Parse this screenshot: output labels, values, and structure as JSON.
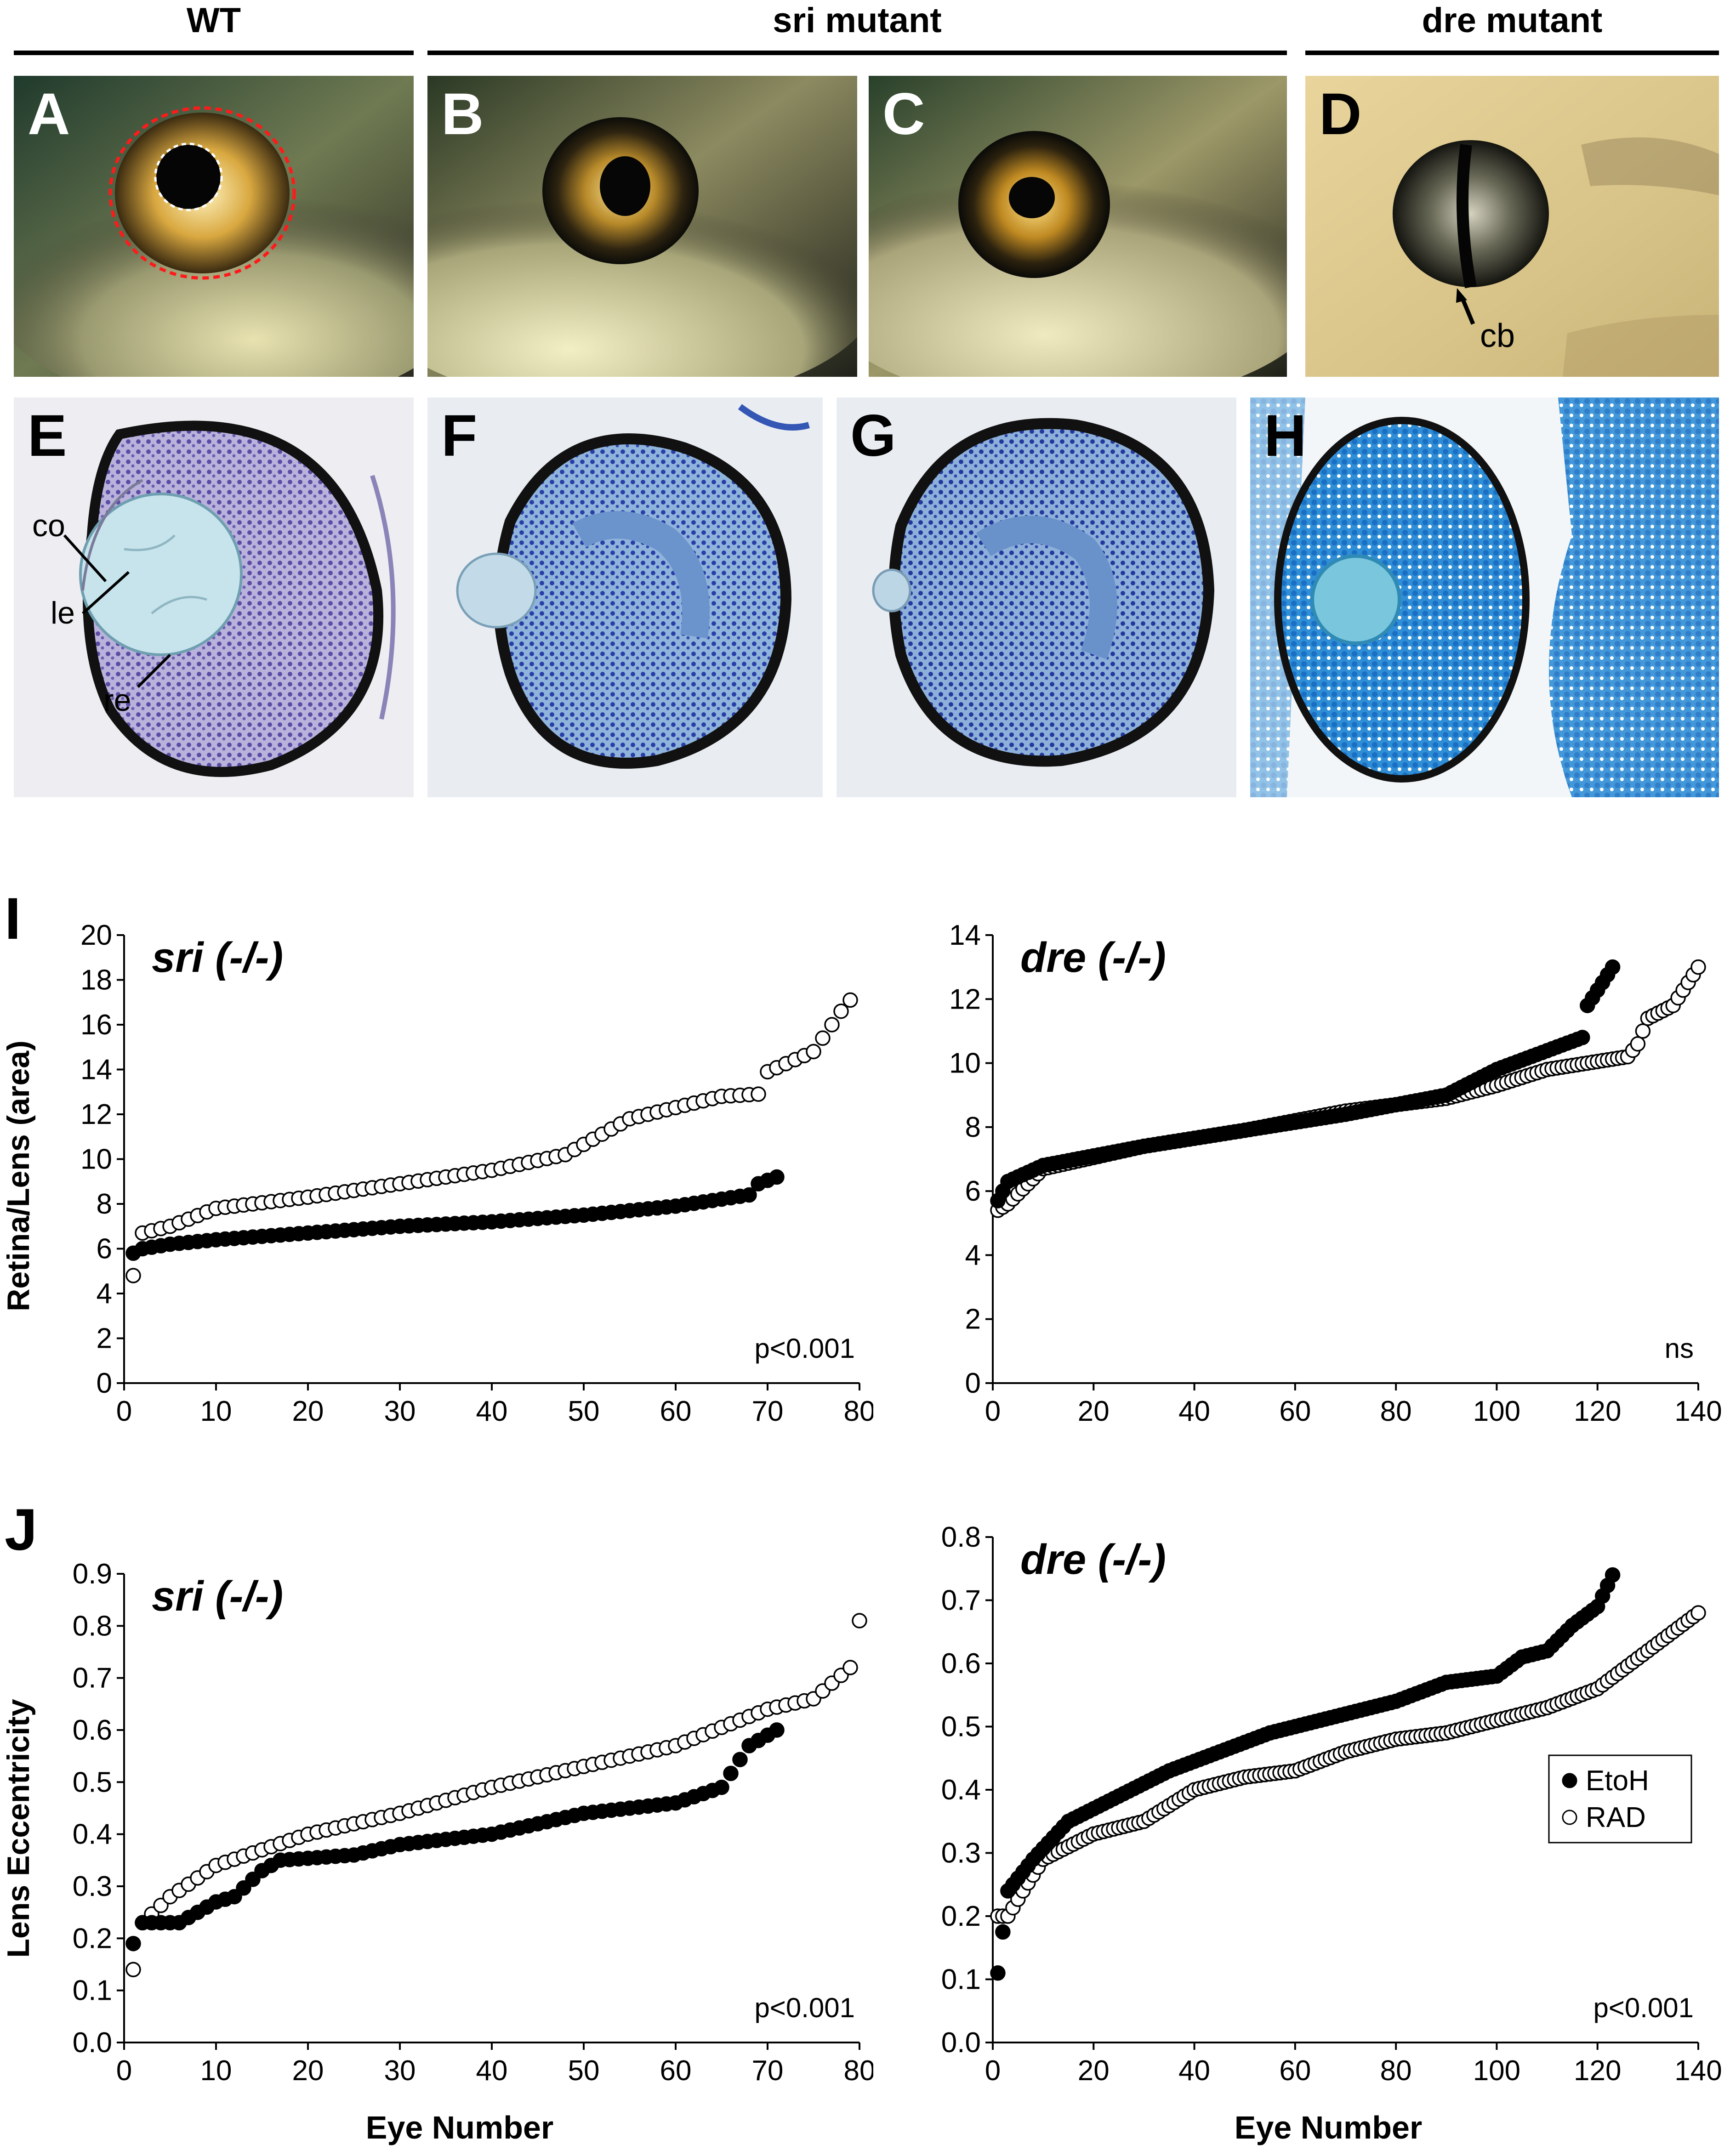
{
  "headers": [
    {
      "id": "wt",
      "label": "WT"
    },
    {
      "id": "sri",
      "label": "sri mutant"
    },
    {
      "id": "dre",
      "label": "dre mutant"
    }
  ],
  "photo_panels": [
    {
      "letter": "A",
      "style": "wt"
    },
    {
      "letter": "B",
      "style": "sri"
    },
    {
      "letter": "C",
      "style": "sri"
    },
    {
      "letter": "D",
      "style": "dre",
      "annotation": "cb"
    }
  ],
  "section_panels": [
    {
      "letter": "E",
      "style": "purple",
      "labels": [
        "co",
        "le",
        "re"
      ]
    },
    {
      "letter": "F",
      "style": "blue"
    },
    {
      "letter": "G",
      "style": "blue"
    },
    {
      "letter": "H",
      "style": "bright"
    }
  ],
  "figure_labels": {
    "I": "I",
    "J": "J"
  },
  "shared_ylabel_I": "Retina/Lens (area)",
  "shared_ylabel_J": "Lens Eccentricity",
  "shared_xlabel": "Eye Number",
  "legend": {
    "etoh": "EtoH",
    "rad": "RAD"
  },
  "colors": {
    "etoh": "#000000",
    "rad": "#ffffff",
    "header_rule": "#000000"
  },
  "chart_data": [
    {
      "id": "I-sri",
      "type": "scatter",
      "title": "sri  (-/-)",
      "stat": "p<0.001",
      "xlim": [
        0,
        80
      ],
      "ylim": [
        0,
        20
      ],
      "xticks": [
        0,
        10,
        20,
        30,
        40,
        50,
        60,
        70,
        80
      ],
      "yticks": [
        0,
        2,
        4,
        6,
        8,
        10,
        12,
        14,
        16,
        18,
        20
      ],
      "series": [
        {
          "key": "etoh",
          "n": 71,
          "anchors": [
            [
              1,
              5.8
            ],
            [
              2,
              6.0
            ],
            [
              5,
              6.2
            ],
            [
              10,
              6.4
            ],
            [
              20,
              6.7
            ],
            [
              30,
              7.0
            ],
            [
              40,
              7.2
            ],
            [
              50,
              7.5
            ],
            [
              60,
              7.9
            ],
            [
              68,
              8.4
            ],
            [
              69,
              8.9
            ],
            [
              71,
              9.2
            ]
          ]
        },
        {
          "key": "rad",
          "n": 79,
          "anchors": [
            [
              1,
              4.8
            ],
            [
              2,
              6.7
            ],
            [
              5,
              7.0
            ],
            [
              10,
              7.8
            ],
            [
              20,
              8.3
            ],
            [
              30,
              8.9
            ],
            [
              40,
              9.5
            ],
            [
              48,
              10.2
            ],
            [
              55,
              11.8
            ],
            [
              65,
              12.8
            ],
            [
              69,
              12.9
            ],
            [
              70,
              13.9
            ],
            [
              75,
              14.8
            ],
            [
              78,
              16.6
            ],
            [
              79,
              17.1
            ]
          ]
        }
      ]
    },
    {
      "id": "I-dre",
      "type": "scatter",
      "title": "dre (-/-)",
      "stat": "ns",
      "xlim": [
        0,
        140
      ],
      "ylim": [
        0,
        14
      ],
      "xticks": [
        0,
        20,
        40,
        60,
        80,
        100,
        120,
        140
      ],
      "yticks": [
        0,
        2,
        4,
        6,
        8,
        10,
        12,
        14
      ],
      "series": [
        {
          "key": "etoh",
          "n": 123,
          "anchors": [
            [
              1,
              5.7
            ],
            [
              3,
              6.3
            ],
            [
              10,
              6.8
            ],
            [
              30,
              7.4
            ],
            [
              50,
              7.9
            ],
            [
              70,
              8.4
            ],
            [
              90,
              9.0
            ],
            [
              100,
              9.8
            ],
            [
              117,
              10.8
            ],
            [
              118,
              11.8
            ],
            [
              123,
              13.0
            ]
          ]
        },
        {
          "key": "rad",
          "n": 140,
          "anchors": [
            [
              1,
              5.4
            ],
            [
              3,
              5.6
            ],
            [
              10,
              6.7
            ],
            [
              30,
              7.4
            ],
            [
              50,
              7.9
            ],
            [
              70,
              8.5
            ],
            [
              90,
              8.9
            ],
            [
              100,
              9.3
            ],
            [
              110,
              9.8
            ],
            [
              126,
              10.2
            ],
            [
              128,
              10.6
            ],
            [
              130,
              11.4
            ],
            [
              135,
              11.8
            ],
            [
              140,
              13.0
            ]
          ]
        }
      ]
    },
    {
      "id": "J-sri",
      "type": "scatter",
      "title": "sri (-/-)",
      "stat": "p<0.001",
      "xlim": [
        0,
        80
      ],
      "ylim": [
        0,
        0.9
      ],
      "xticks": [
        0,
        10,
        20,
        30,
        40,
        50,
        60,
        70,
        80
      ],
      "yticks": [
        0,
        0.1,
        0.2,
        0.3,
        0.4,
        0.5,
        0.6,
        0.7,
        0.8,
        0.9
      ],
      "series": [
        {
          "key": "etoh",
          "n": 71,
          "anchors": [
            [
              1,
              0.19
            ],
            [
              2,
              0.23
            ],
            [
              6,
              0.23
            ],
            [
              8,
              0.25
            ],
            [
              10,
              0.27
            ],
            [
              12,
              0.28
            ],
            [
              15,
              0.33
            ],
            [
              17,
              0.35
            ],
            [
              25,
              0.36
            ],
            [
              30,
              0.38
            ],
            [
              40,
              0.4
            ],
            [
              50,
              0.44
            ],
            [
              60,
              0.46
            ],
            [
              65,
              0.49
            ],
            [
              68,
              0.57
            ],
            [
              71,
              0.6
            ]
          ]
        },
        {
          "key": "rad",
          "n": 80,
          "anchors": [
            [
              1,
              0.14
            ],
            [
              2,
              0.23
            ],
            [
              5,
              0.28
            ],
            [
              10,
              0.34
            ],
            [
              20,
              0.4
            ],
            [
              30,
              0.44
            ],
            [
              40,
              0.49
            ],
            [
              50,
              0.53
            ],
            [
              60,
              0.57
            ],
            [
              70,
              0.64
            ],
            [
              75,
              0.66
            ],
            [
              79,
              0.72
            ],
            [
              80,
              0.81
            ]
          ]
        }
      ]
    },
    {
      "id": "J-dre",
      "type": "scatter",
      "title": "dre (-/-)",
      "stat": "p<0.001",
      "xlim": [
        0,
        140
      ],
      "ylim": [
        0,
        0.8
      ],
      "xticks": [
        0,
        20,
        40,
        60,
        80,
        100,
        120,
        140
      ],
      "yticks": [
        0,
        0.1,
        0.2,
        0.3,
        0.4,
        0.5,
        0.6,
        0.7,
        0.8
      ],
      "series": [
        {
          "key": "etoh",
          "n": 123,
          "anchors": [
            [
              1,
              0.11
            ],
            [
              3,
              0.24
            ],
            [
              8,
              0.29
            ],
            [
              15,
              0.35
            ],
            [
              25,
              0.39
            ],
            [
              35,
              0.43
            ],
            [
              45,
              0.46
            ],
            [
              55,
              0.49
            ],
            [
              65,
              0.51
            ],
            [
              80,
              0.54
            ],
            [
              90,
              0.57
            ],
            [
              100,
              0.58
            ],
            [
              105,
              0.61
            ],
            [
              110,
              0.62
            ],
            [
              115,
              0.66
            ],
            [
              120,
              0.69
            ],
            [
              123,
              0.74
            ]
          ]
        },
        {
          "key": "rad",
          "n": 140,
          "anchors": [
            [
              1,
              0.2
            ],
            [
              3,
              0.2
            ],
            [
              6,
              0.24
            ],
            [
              10,
              0.29
            ],
            [
              20,
              0.33
            ],
            [
              30,
              0.35
            ],
            [
              40,
              0.4
            ],
            [
              50,
              0.42
            ],
            [
              60,
              0.43
            ],
            [
              70,
              0.46
            ],
            [
              80,
              0.48
            ],
            [
              90,
              0.49
            ],
            [
              100,
              0.51
            ],
            [
              110,
              0.53
            ],
            [
              120,
              0.56
            ],
            [
              130,
              0.62
            ],
            [
              140,
              0.68
            ]
          ]
        }
      ]
    }
  ]
}
